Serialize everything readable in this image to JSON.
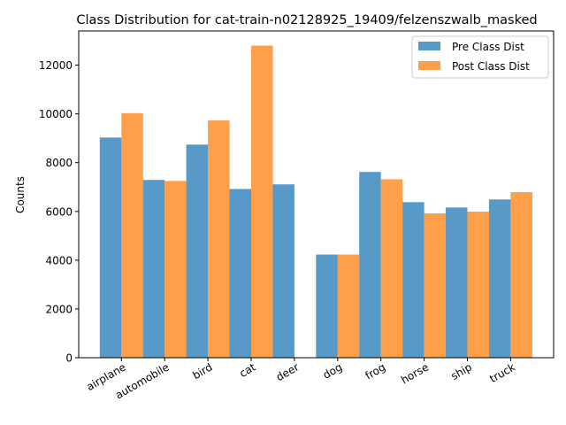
{
  "chart_data": {
    "type": "bar",
    "title": "Class Distribution for cat-train-n02128925_19409/felzenszwalb_masked",
    "xlabel": "",
    "ylabel": "Counts",
    "categories": [
      "airplane",
      "automobile",
      "bird",
      "cat",
      "deer",
      "dog",
      "frog",
      "horse",
      "ship",
      "truck"
    ],
    "series": [
      {
        "name": "Pre Class Dist",
        "color": "#1f77b4",
        "values": [
          9030,
          7290,
          8740,
          6920,
          7110,
          4230,
          7620,
          6380,
          6160,
          6490
        ]
      },
      {
        "name": "Post Class Dist",
        "color": "#ff7f0e",
        "values": [
          10030,
          7250,
          9730,
          12800,
          0,
          4230,
          7320,
          5920,
          5990,
          6790
        ]
      }
    ],
    "ylim": [
      0,
      13400
    ],
    "yticks": [
      "0",
      "2000",
      "4000",
      "6000",
      "8000",
      "10000",
      "12000"
    ],
    "grid": false,
    "legend_position": "top-right"
  }
}
